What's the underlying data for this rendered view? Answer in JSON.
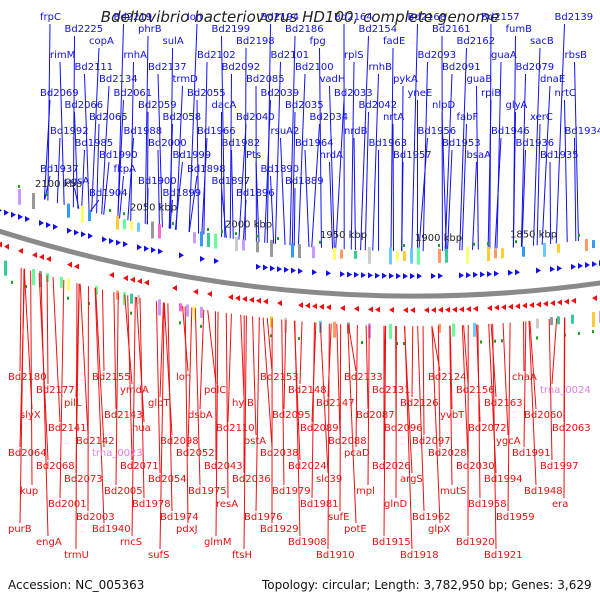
{
  "title": "Bdellovibrio bacteriovorus HD100, complete genome",
  "footer": {
    "accession": "Accession: NC_005363",
    "topology": "Topology: circular; Length: 3,782,950 bp; Genes: 3,629"
  },
  "colors": {
    "forward_strand": "#1010ee",
    "reverse_strand": "#ee1010",
    "trna_label": "#e080e0",
    "backbone": "#909090",
    "cds_marker": "#1aa01a"
  },
  "scale_ticks": [
    "2100 kbp",
    "2050 kbp",
    "2000 kbp",
    "1950 kbp",
    "1900 kbp",
    "1850 kbp"
  ],
  "top_labels": [
    "frpC",
    "Bd2225",
    "copA",
    "Bd2219",
    "phrB",
    "sulA",
    "lon",
    "Bd2199",
    "Bd2198",
    "Bd2194",
    "Bd2186",
    "fpg",
    "Bd2164",
    "Bd2154",
    "fadE",
    "Bd2168",
    "Bd2161",
    "Bd2162",
    "Bd2157",
    "fumB",
    "sacB",
    "Bd2139",
    "rimM",
    "Bd2111",
    "Bd2134",
    "rnhA",
    "Bd2137",
    "trmD",
    "Bd2102",
    "Bd2092",
    "Bd2085",
    "Bd2101",
    "Bd2100",
    "vadH",
    "rplS",
    "rnhB",
    "pykA",
    "Bd2093",
    "Bd2091",
    "guaB",
    "guaA",
    "Bd2079",
    "dnaE",
    "rbsB",
    "Bd2069",
    "Bd2066",
    "Bd2065",
    "Bd2061",
    "Bd2059",
    "Bd2058",
    "Bd2055",
    "dacA",
    "Bd2040",
    "Bd2039",
    "Bd2035",
    "Bd2034",
    "Bd2033",
    "Bd2042",
    "nrtA",
    "yneE",
    "nlpD",
    "fabF",
    "rpiB",
    "glyA",
    "xerC",
    "nrtC",
    "Bd1992",
    "Bd1985",
    "Bd1990",
    "Bd1988",
    "Bd2000",
    "Bd1999",
    "Bd1966",
    "Bd1982",
    "Pts",
    "rsuA2",
    "Bd1964",
    "nrdA",
    "nrdB",
    "Bd1963",
    "Bd1957",
    "Bd1956",
    "Bd1953",
    "bsaA",
    "Bd1946",
    "Bd1936",
    "Bd1935",
    "Bd1934",
    "Bd1937",
    "pgsA",
    "Bd1904",
    "fkpA",
    "Bd1900",
    "Bd1899",
    "Bd1898",
    "Bd1897",
    "Bd1896",
    "Bd1890",
    "Bd1889"
  ],
  "bottom_labels": [
    "Bd2180",
    "Bd2177",
    "pilL",
    "Bd2155",
    "ymdA",
    "glpT",
    "lon",
    "polC",
    "hylB",
    "Bd2153",
    "Bd2148",
    "Bd2147",
    "Bd2133",
    "Bd2131",
    "Bd2126",
    "Bd2124",
    "Bd2156",
    "Bd2163",
    "chaA",
    "trna_0024",
    "slyX",
    "Bd2141",
    "Bd2142",
    "Bd2143",
    "hua",
    "Bd2098",
    "dsbA",
    "Bd2110",
    "ostA",
    "Bd2095",
    "Bd2089",
    "Bd2088",
    "Bd2087",
    "Bd2096",
    "Bd2097",
    "yvbT",
    "Bd2072",
    "ygcA",
    "Bd2060",
    "Bd2063",
    "Bd2064",
    "Bd2068",
    "Bd2073",
    "trna_0023",
    "Bd2071",
    "Bd2054",
    "Bd2052",
    "Bd2043",
    "Bd2036",
    "Bd2038",
    "Bd2024",
    "slc39",
    "pcaD",
    "Bd2026",
    "argS",
    "Bd2028",
    "Bd2030",
    "Bd1994",
    "Bd1991",
    "Bd1997",
    "kup",
    "Bd2001",
    "Bd2003",
    "Bd2005",
    "Bd1978",
    "Bd1974",
    "Bd1975",
    "resA",
    "Bd1976",
    "Bd1979",
    "Bd1981",
    "sufE",
    "mpl",
    "glnD",
    "Bd1962",
    "mutS",
    "Bd1958",
    "Bd1959",
    "Bd1948",
    "era",
    "purB",
    "engA",
    "trmU",
    "Bd1940",
    "rncS",
    "sufS",
    "pdxJ",
    "glmM",
    "ftsH",
    "Bd1929",
    "Bd1908",
    "Bd1910",
    "potE",
    "Bd1915",
    "Bd1918",
    "glpX",
    "Bd1920",
    "Bd1921"
  ]
}
